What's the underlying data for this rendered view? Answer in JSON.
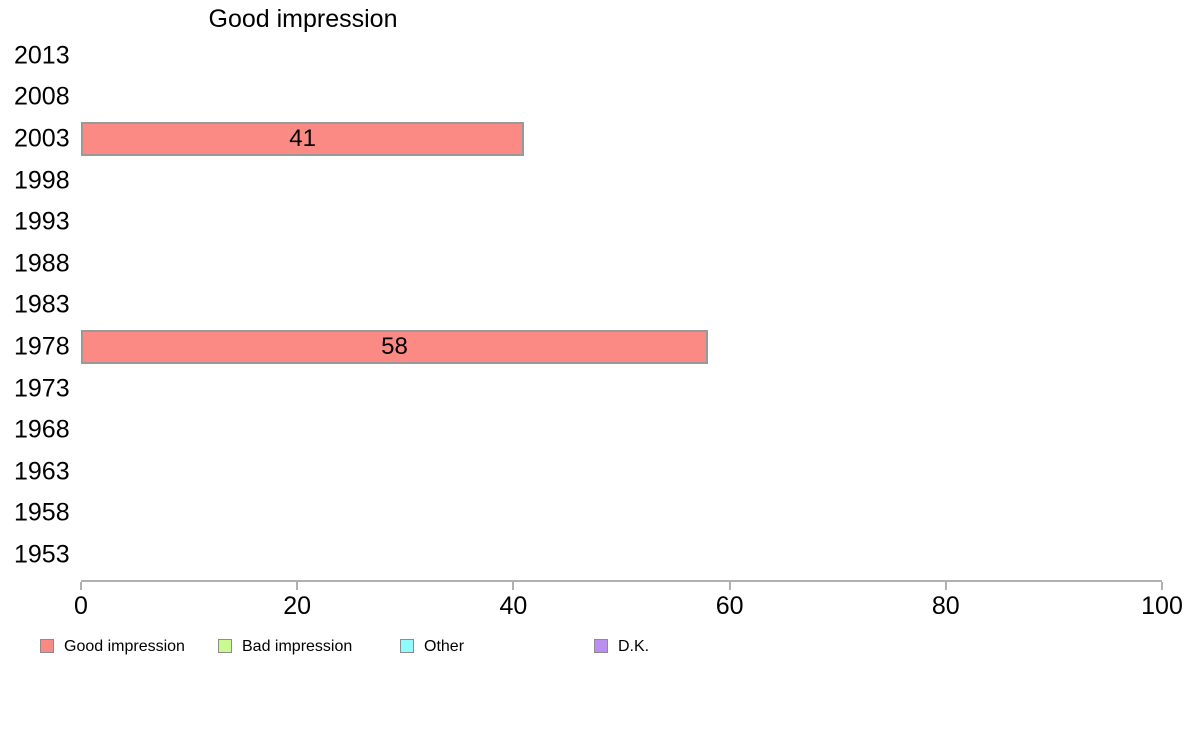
{
  "chart_data": {
    "type": "bar",
    "orientation": "horizontal",
    "title": "Good impression",
    "categories": [
      "2013",
      "2008",
      "2003",
      "1998",
      "1993",
      "1988",
      "1983",
      "1978",
      "1973",
      "1968",
      "1963",
      "1958",
      "1953"
    ],
    "series": [
      {
        "name": "Good impression",
        "color": "#FC8A84",
        "values": [
          null,
          null,
          41,
          null,
          null,
          null,
          null,
          58,
          null,
          null,
          null,
          null,
          null
        ]
      },
      {
        "name": "Bad impression",
        "color": "#C9FA90",
        "values": [
          null,
          null,
          null,
          null,
          null,
          null,
          null,
          null,
          null,
          null,
          null,
          null,
          null
        ]
      },
      {
        "name": "Other",
        "color": "#90FBFA",
        "values": [
          null,
          null,
          null,
          null,
          null,
          null,
          null,
          null,
          null,
          null,
          null,
          null,
          null
        ]
      },
      {
        "name": "D.K.",
        "color": "#BB8EF2",
        "values": [
          null,
          null,
          null,
          null,
          null,
          null,
          null,
          null,
          null,
          null,
          null,
          null,
          null
        ]
      }
    ],
    "xlim": [
      0,
      100
    ],
    "x_ticks": [
      "0",
      "20",
      "40",
      "60",
      "80",
      "100"
    ],
    "grid": false,
    "legend_position": "bottom"
  },
  "legend": {
    "items": [
      {
        "label": "Good impression",
        "color": "#FC8A84"
      },
      {
        "label": "Bad impression",
        "color": "#C9FA90"
      },
      {
        "label": "Other",
        "color": "#90FBFA"
      },
      {
        "label": "D.K.",
        "color": "#BB8EF2"
      }
    ]
  },
  "colors": {
    "bar_border": "#999999",
    "axis": "#B0B0B0",
    "text": "#000000",
    "background": "#FFFFFF"
  }
}
